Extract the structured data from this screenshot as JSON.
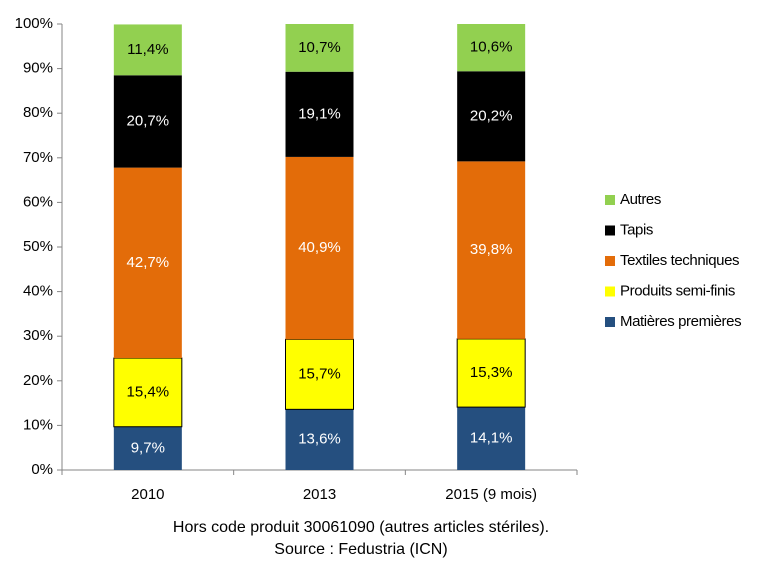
{
  "chart_data": {
    "type": "stacked_bar",
    "categories": [
      "2010",
      "2013",
      "2015 (9 mois)"
    ],
    "series": [
      {
        "name": "Matières premières",
        "color": "#254f7f",
        "values": [
          9.7,
          13.6,
          14.1
        ],
        "value_labels": [
          "9,7%",
          "13,6%",
          "14,1%"
        ]
      },
      {
        "name": "Produits semi-finis",
        "color": "#ffff00",
        "values": [
          15.4,
          15.7,
          15.3
        ],
        "value_labels": [
          "15,4%",
          "15,7%",
          "15,3%"
        ]
      },
      {
        "name": "Textiles techniques",
        "color": "#e36c09",
        "values": [
          42.7,
          40.9,
          39.8
        ],
        "value_labels": [
          "42,7%",
          "40,9%",
          "39,8%"
        ]
      },
      {
        "name": "Tapis",
        "color": "#000000",
        "values": [
          20.7,
          19.1,
          20.2
        ],
        "value_labels": [
          "20,7%",
          "19,1%",
          "20,2%"
        ]
      },
      {
        "name": "Autres",
        "color": "#92d050",
        "values": [
          11.4,
          10.7,
          10.6
        ],
        "value_labels": [
          "11,4%",
          "10,7%",
          "10,6%"
        ]
      }
    ],
    "ylim": [
      0,
      100
    ],
    "yticks": [
      {
        "value": 0,
        "label": "0%"
      },
      {
        "value": 10,
        "label": "10%"
      },
      {
        "value": 20,
        "label": "20%"
      },
      {
        "value": 30,
        "label": "30%"
      },
      {
        "value": 40,
        "label": "40%"
      },
      {
        "value": 50,
        "label": "50%"
      },
      {
        "value": 60,
        "label": "60%"
      },
      {
        "value": 70,
        "label": "70%"
      },
      {
        "value": 80,
        "label": "80%"
      },
      {
        "value": 90,
        "label": "90%"
      },
      {
        "value": 100,
        "label": "100%"
      }
    ],
    "legend": "right",
    "notes": [
      "Hors code produit 30061090 (autres articles stériles).",
      "Source : Fedustria (ICN)"
    ]
  }
}
